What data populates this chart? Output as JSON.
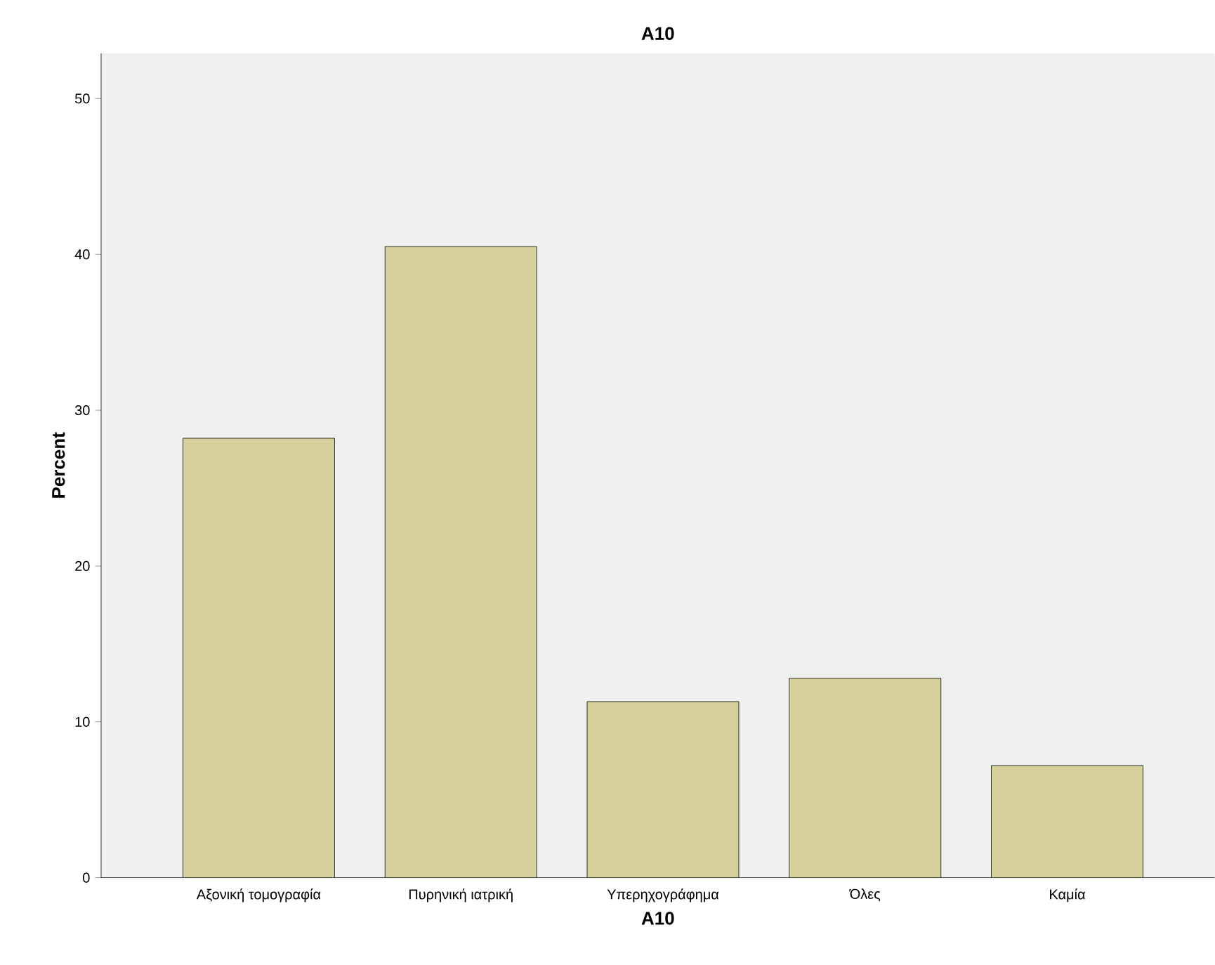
{
  "chart_data": {
    "type": "bar",
    "title": "A10",
    "xlabel": "A10",
    "ylabel": "Percent",
    "categories": [
      "Αξονική τομογραφία",
      "Πυρηνική ιατρική",
      "Υπερηχογράφημα",
      "Όλες",
      "Καμία"
    ],
    "values": [
      28.2,
      40.5,
      11.3,
      12.8,
      7.2
    ],
    "color": "#d6d19c",
    "ylim": [
      0,
      52.9
    ],
    "yticks": [
      0,
      10,
      20,
      30,
      40,
      50
    ]
  }
}
